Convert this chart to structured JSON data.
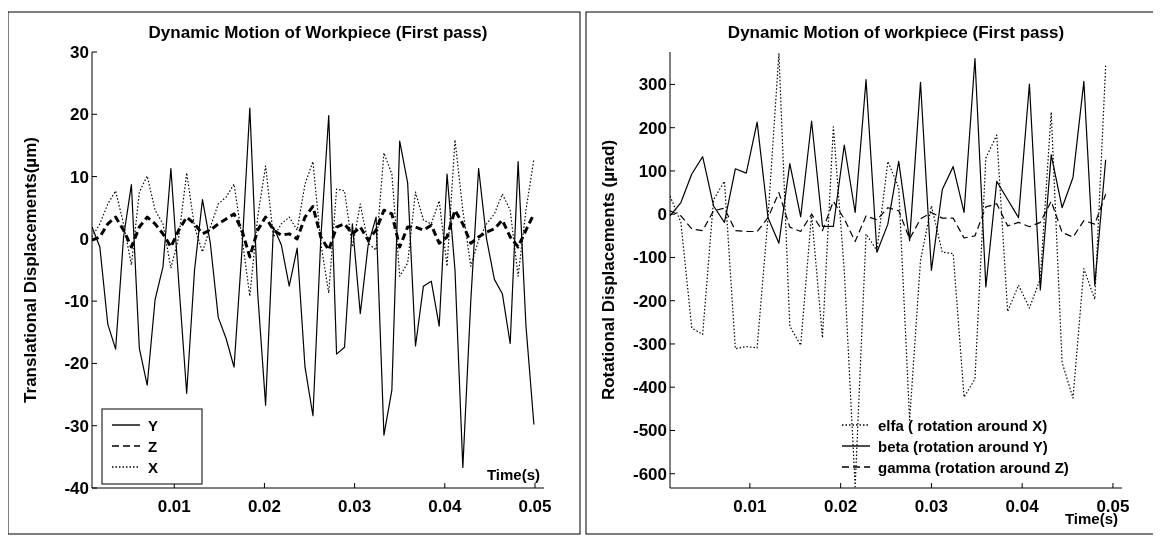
{
  "chart_data": [
    {
      "type": "line",
      "title": "Dynamic Motion of Workpiece (First pass)",
      "xlabel": "Time(s)",
      "ylabel": "Translational Displacements(µm)",
      "x": [
        0.00088,
        0.00175,
        0.00263,
        0.0035,
        0.00438,
        0.00525,
        0.00613,
        0.007,
        0.00788,
        0.00875,
        0.00963,
        0.0105,
        0.01138,
        0.01225,
        0.01313,
        0.014,
        0.01488,
        0.01575,
        0.01663,
        0.0175,
        0.01838,
        0.01925,
        0.02013,
        0.021,
        0.02188,
        0.02275,
        0.02363,
        0.0245,
        0.02538,
        0.02625,
        0.02713,
        0.028,
        0.02888,
        0.02975,
        0.03063,
        0.0315,
        0.03238,
        0.03325,
        0.03413,
        0.035,
        0.03588,
        0.03675,
        0.03763,
        0.0385,
        0.03938,
        0.04025,
        0.04113,
        0.042,
        0.04288,
        0.04375,
        0.04463,
        0.0455,
        0.04638,
        0.04725,
        0.04813,
        0.049,
        0.04988
      ],
      "xlim": [
        0.00088,
        0.051
      ],
      "xticks": [
        0.01,
        0.02,
        0.03,
        0.04,
        0.05
      ],
      "ylim": [
        -40,
        30
      ],
      "yticks": [
        -40,
        -30,
        -20,
        -10,
        0,
        10,
        20,
        30
      ],
      "legend": "bottom left",
      "grid": false,
      "series": [
        {
          "name": "Y",
          "color": "#000000",
          "line_style": "solid",
          "values": [
            1.9,
            -1.3,
            -13.7,
            -17.7,
            0.3,
            8.7,
            -17.6,
            -23.5,
            -9.7,
            -4.5,
            11.3,
            -7,
            -24.8,
            -5,
            6.3,
            -0.7,
            -12.6,
            -16,
            -20.6,
            -2,
            21,
            -8.7,
            -26.7,
            1.9,
            -1,
            -7.6,
            -1.5,
            -20.6,
            -28.4,
            0,
            19.8,
            -18.5,
            -17.4,
            2.4,
            -12,
            -1,
            3.5,
            -31.5,
            -24.3,
            15.7,
            9,
            -17.2,
            -7.6,
            -6.8,
            -14,
            10.4,
            -5,
            -36.7,
            -10,
            11.3,
            0,
            -6.5,
            -8.8,
            -16.8,
            12.4,
            -14,
            -29.8
          ]
        },
        {
          "name": "Z",
          "color": "#000000",
          "line_style": "dashed",
          "values": [
            -0.2,
            0.3,
            2.4,
            3.5,
            1.4,
            -1.3,
            1.9,
            3.5,
            2.4,
            0.8,
            -1.3,
            1.4,
            3.5,
            2.4,
            0.8,
            1.4,
            2.4,
            3.2,
            4,
            1.4,
            -2.9,
            1.4,
            3.5,
            1.4,
            0.6,
            0.8,
            0,
            3.5,
            5.2,
            0.3,
            -1.8,
            1.9,
            2.4,
            0.8,
            1.9,
            -0.2,
            1.4,
            4.6,
            4,
            -1.3,
            1.9,
            1.9,
            1.4,
            2.2,
            -0.7,
            0.3,
            4.6,
            2.4,
            -0.7,
            0.3,
            1.1,
            1.6,
            3,
            0.3,
            -1.3,
            1.4,
            4
          ]
        },
        {
          "name": "X",
          "color": "#000000",
          "line_style": "dotted",
          "values": [
            0.3,
            2.4,
            5.6,
            7.7,
            2.4,
            -4.2,
            7.5,
            10.1,
            4.6,
            2.4,
            -4.7,
            0.3,
            10.6,
            1.9,
            -2.1,
            1.9,
            5.6,
            6.7,
            8.8,
            0.3,
            -9.2,
            3.5,
            11.7,
            0.3,
            2.4,
            3.5,
            1.4,
            8.8,
            12.4,
            -0.7,
            -8.7,
            8,
            7.7,
            -1.3,
            5.6,
            -0.7,
            -1.8,
            13.8,
            10.4,
            -6,
            -3.9,
            7.5,
            3,
            2.4,
            6.1,
            -4.4,
            15.9,
            4.6,
            -4.4,
            -0.2,
            2.4,
            4,
            7.2,
            4.6,
            -6,
            4.6,
            12.8
          ]
        }
      ]
    },
    {
      "type": "line",
      "title": "Dynamic Motion of workpiece (First pass)",
      "xlabel": "Time(s)",
      "ylabel": "Rotational Displacements (µrad)",
      "x": [
        0.0012,
        0.0024,
        0.0036,
        0.0048,
        0.006,
        0.0072,
        0.0084,
        0.0096,
        0.0108,
        0.012,
        0.0132,
        0.0144,
        0.0156,
        0.0168,
        0.018,
        0.0192,
        0.0204,
        0.0216,
        0.0228,
        0.024,
        0.0252,
        0.0264,
        0.0276,
        0.0288,
        0.03,
        0.0312,
        0.0324,
        0.0336,
        0.0348,
        0.036,
        0.0372,
        0.0384,
        0.0396,
        0.0408,
        0.042,
        0.0432,
        0.0444,
        0.0456,
        0.0468,
        0.048,
        0.0492
      ],
      "xlim": [
        0.0012,
        0.051
      ],
      "xticks": [
        0.01,
        0.02,
        0.03,
        0.04,
        0.05
      ],
      "ylim": [
        -633,
        375
      ],
      "yticks": [
        -600,
        -500,
        -400,
        -300,
        -200,
        -100,
        0,
        100,
        200,
        300
      ],
      "legend": "bottom right",
      "grid": false,
      "series": [
        {
          "name": "elfa ( rotation around X)",
          "color": "#000000",
          "line_style": "dotted",
          "values": [
            42,
            -19,
            -263,
            -278,
            34,
            76,
            -311,
            -306,
            -309,
            -8,
            372,
            -259,
            -303,
            0,
            -286,
            202,
            -130,
            -630,
            -46,
            -84,
            122,
            61,
            -476,
            -107,
            19,
            -88,
            -91,
            -423,
            -381,
            130,
            183,
            -225,
            -164,
            -217,
            -149,
            236,
            -343,
            -425,
            -126,
            -197,
            343
          ]
        },
        {
          "name": "beta (rotation around Y)",
          "color": "#000000",
          "line_style": "solid",
          "values": [
            -4,
            27,
            93,
            133,
            19,
            -19,
            105,
            95,
            213,
            -8,
            -67,
            117,
            -6,
            215,
            -28,
            -28,
            160,
            4,
            311,
            -88,
            -23,
            122,
            -61,
            305,
            -130,
            57,
            110,
            4,
            360,
            -168,
            76,
            34,
            -8,
            301,
            -175,
            137,
            15,
            85,
            307,
            -164,
            126
          ]
        },
        {
          "name": "gamma (rotation around Z)",
          "color": "#000000",
          "line_style": "dashed",
          "values": [
            8,
            -4,
            -34,
            -38,
            8,
            14,
            -38,
            -40,
            -40,
            -8,
            50,
            -30,
            -40,
            0,
            -38,
            30,
            -11,
            -63,
            -4,
            -13,
            15,
            8,
            -57,
            -11,
            4,
            -9,
            -9,
            -55,
            -50,
            17,
            24,
            -27,
            -19,
            -29,
            -19,
            30,
            -42,
            -53,
            -15,
            -23,
            46
          ]
        }
      ]
    }
  ]
}
